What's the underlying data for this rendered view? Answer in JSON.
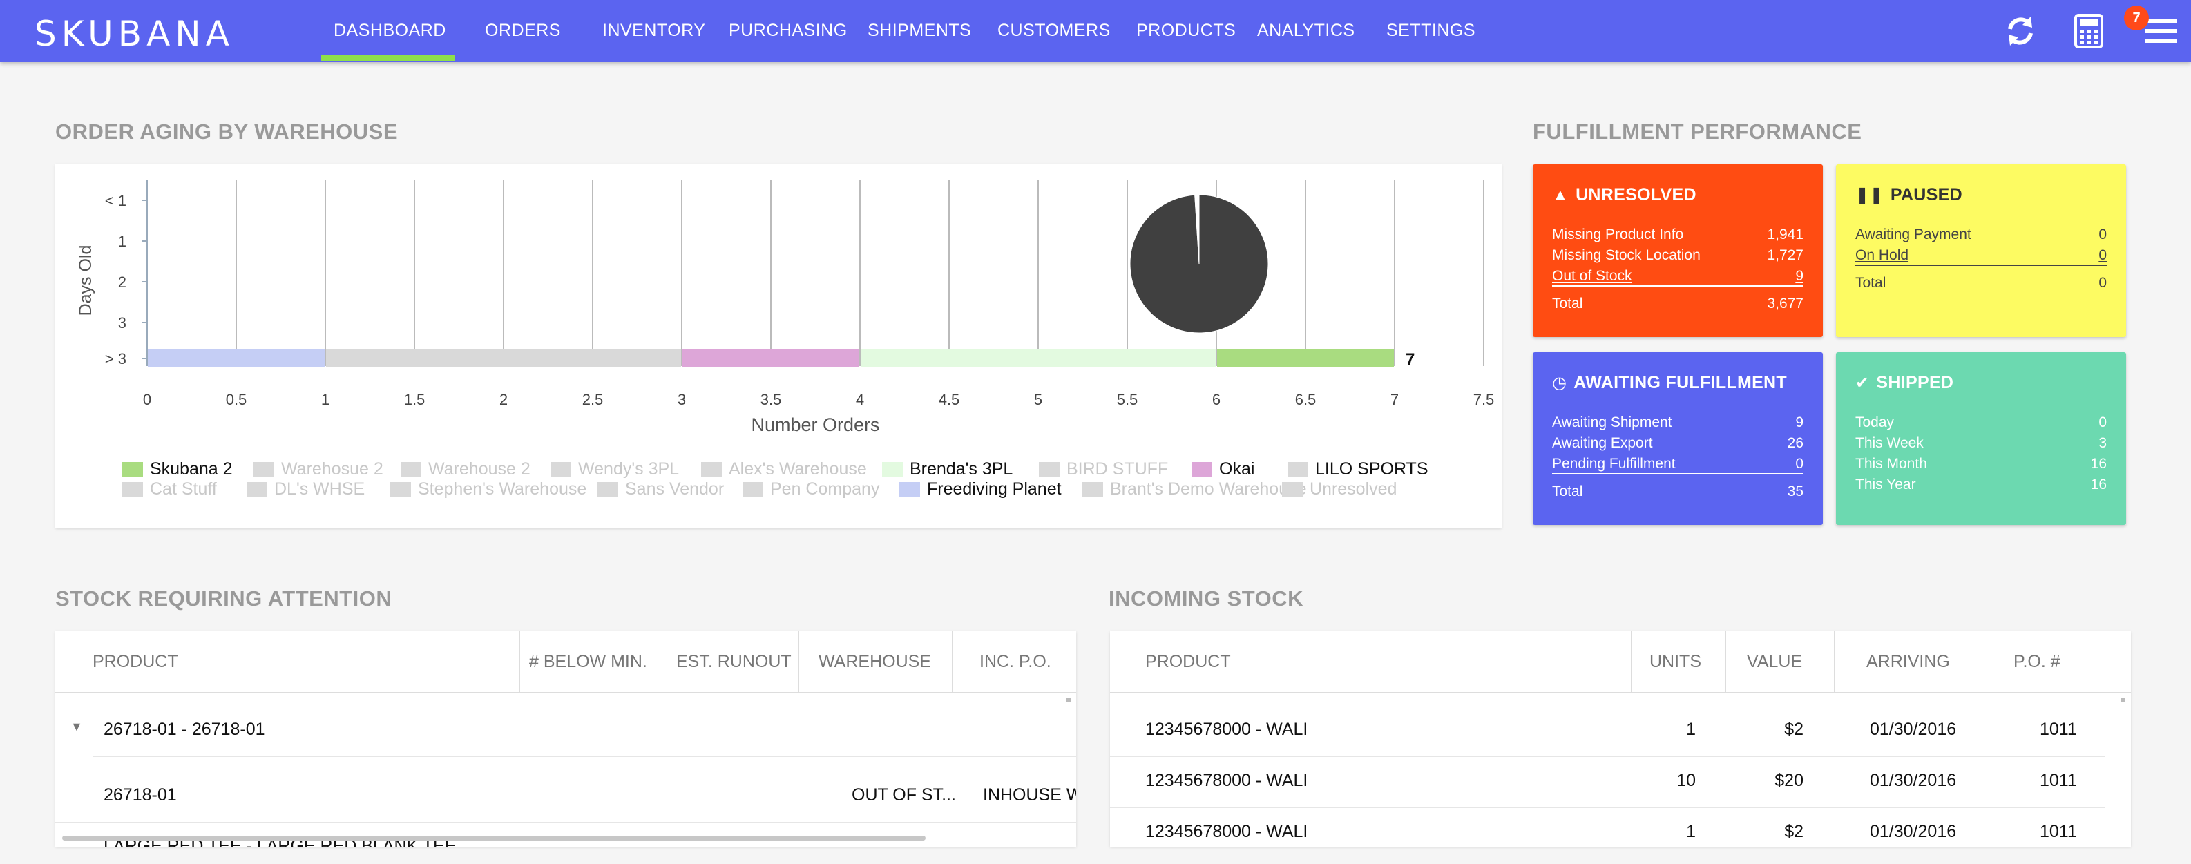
{
  "nav": {
    "logo": "SKUBANA",
    "items": [
      "DASHBOARD",
      "ORDERS",
      "INVENTORY",
      "PURCHASING",
      "SHIPMENTS",
      "CUSTOMERS",
      "PRODUCTS",
      "ANALYTICS",
      "SETTINGS"
    ],
    "active": "DASHBOARD",
    "badge_count": "7",
    "icons": [
      "refresh-icon",
      "calculator-icon",
      "menu-icon"
    ]
  },
  "order_aging": {
    "title": "ORDER AGING BY WAREHOUSE"
  },
  "chart_data": {
    "type": "bar",
    "orientation": "horizontal-stacked",
    "categories": [
      "< 1",
      "1",
      "2",
      "3",
      "> 3"
    ],
    "xlabel": "Number Orders",
    "ylabel": "Days Old",
    "xlim": [
      0,
      7.5
    ],
    "xticks": [
      "0",
      "0.5",
      "1",
      "1.5",
      "2",
      "2.5",
      "3",
      "3.5",
      "4",
      "4.5",
      "5",
      "5.5",
      "6",
      "6.5",
      "7",
      "7.5"
    ],
    "grid": true,
    "total_label": "7",
    "series": [
      {
        "name": "Freediving Planet",
        "color": "#c5cef5",
        "values": [
          0,
          0,
          0,
          0,
          1
        ]
      },
      {
        "name": "LILO SPORTS",
        "color": "#d9d9d9",
        "values": [
          0,
          0,
          0,
          0,
          2
        ]
      },
      {
        "name": "Okai",
        "color": "#dda6d8",
        "values": [
          0,
          0,
          0,
          0,
          1
        ]
      },
      {
        "name": "Brenda's 3PL",
        "color": "#e3fae0",
        "values": [
          0,
          0,
          0,
          0,
          2
        ]
      },
      {
        "name": "Skubana 2",
        "color": "#a9dc80",
        "values": [
          0,
          0,
          0,
          0,
          1
        ]
      }
    ],
    "legend": [
      {
        "name": "Skubana 2",
        "color": "#a9dc80",
        "active": true
      },
      {
        "name": "Warehosue 2",
        "color": "#d9d9d9",
        "active": false
      },
      {
        "name": "Warehouse 2",
        "color": "#d9d9d9",
        "active": false
      },
      {
        "name": "Wendy's 3PL",
        "color": "#d9d9d9",
        "active": false
      },
      {
        "name": "Alex's Warehouse",
        "color": "#d9d9d9",
        "active": false
      },
      {
        "name": "Brenda's 3PL",
        "color": "#e3fae0",
        "active": true
      },
      {
        "name": "BIRD STUFF",
        "color": "#d9d9d9",
        "active": false
      },
      {
        "name": "Okai",
        "color": "#dda6d8",
        "active": true
      },
      {
        "name": "LILO SPORTS",
        "color": "#d9d9d9",
        "active": true
      },
      {
        "name": "Cat Stuff",
        "color": "#d9d9d9",
        "active": false
      },
      {
        "name": "DL's WHSE",
        "color": "#d9d9d9",
        "active": false
      },
      {
        "name": "Stephen's Warehouse",
        "color": "#d9d9d9",
        "active": false
      },
      {
        "name": "Sans Vendor",
        "color": "#d9d9d9",
        "active": false
      },
      {
        "name": "Pen Company",
        "color": "#d9d9d9",
        "active": false
      },
      {
        "name": "Freediving Planet",
        "color": "#c5cef5",
        "active": true
      },
      {
        "name": "Brant's Demo Warehouse",
        "color": "#d9d9d9",
        "active": false
      },
      {
        "name": "Unresolved",
        "color": "#d9d9d9",
        "active": false
      }
    ],
    "pie": {
      "slices": [
        {
          "value": 99,
          "color": "#404040"
        },
        {
          "value": 1,
          "color": "#ffffff"
        }
      ]
    }
  },
  "fulfillment": {
    "title": "FULFILLMENT PERFORMANCE",
    "unresolved": {
      "title": "UNRESOLVED",
      "rows": [
        {
          "label": "Missing Product Info",
          "value": "1,941"
        },
        {
          "label": "Missing Stock Location",
          "value": "1,727"
        },
        {
          "label": "Out of Stock",
          "value": "9"
        }
      ],
      "total_label": "Total",
      "total": "3,677",
      "color": "#ff4c12"
    },
    "paused": {
      "title": "PAUSED",
      "rows": [
        {
          "label": "Awaiting Payment",
          "value": "0"
        },
        {
          "label": "On Hold",
          "value": "0"
        }
      ],
      "total_label": "Total",
      "total": "0",
      "color": "#fdfb62"
    },
    "awaiting": {
      "title": "AWAITING FULFILLMENT",
      "rows": [
        {
          "label": "Awaiting Shipment",
          "value": "9"
        },
        {
          "label": "Awaiting Export",
          "value": "26"
        },
        {
          "label": "Pending Fulfillment",
          "value": "0"
        }
      ],
      "total_label": "Total",
      "total": "35",
      "color": "#5b64f0"
    },
    "shipped": {
      "title": "SHIPPED",
      "rows": [
        {
          "label": "Today",
          "value": "0"
        },
        {
          "label": "This Week",
          "value": "3"
        },
        {
          "label": "This Month",
          "value": "16"
        },
        {
          "label": "This Year",
          "value": "16"
        }
      ],
      "color": "#6cd9b0"
    }
  },
  "stock_attention": {
    "title": "STOCK REQUIRING ATTENTION",
    "columns": [
      "PRODUCT",
      "# BELOW MIN.",
      "EST. RUNOUT",
      "WAREHOUSE",
      "INC. P.O."
    ],
    "group_label": "26718-01 - 26718-01",
    "row": {
      "product": "26718-01",
      "warehouse": "OUT OF ST...",
      "inc_po": "INHOUSE W"
    },
    "cut_row": "LARGE RED TEE - LARGE RED BLANK TEE"
  },
  "incoming_stock": {
    "title": "INCOMING STOCK",
    "columns": [
      "PRODUCT",
      "UNITS",
      "VALUE",
      "ARRIVING",
      "P.O. #"
    ],
    "rows": [
      {
        "product": "12345678000 - WALI",
        "units": "1",
        "value": "$2",
        "arriving": "01/30/2016",
        "po": "1011"
      },
      {
        "product": "12345678000 - WALI",
        "units": "10",
        "value": "$20",
        "arriving": "01/30/2016",
        "po": "1011"
      },
      {
        "product": "12345678000 - WALI",
        "units": "1",
        "value": "$2",
        "arriving": "01/30/2016",
        "po": "1011"
      }
    ]
  }
}
